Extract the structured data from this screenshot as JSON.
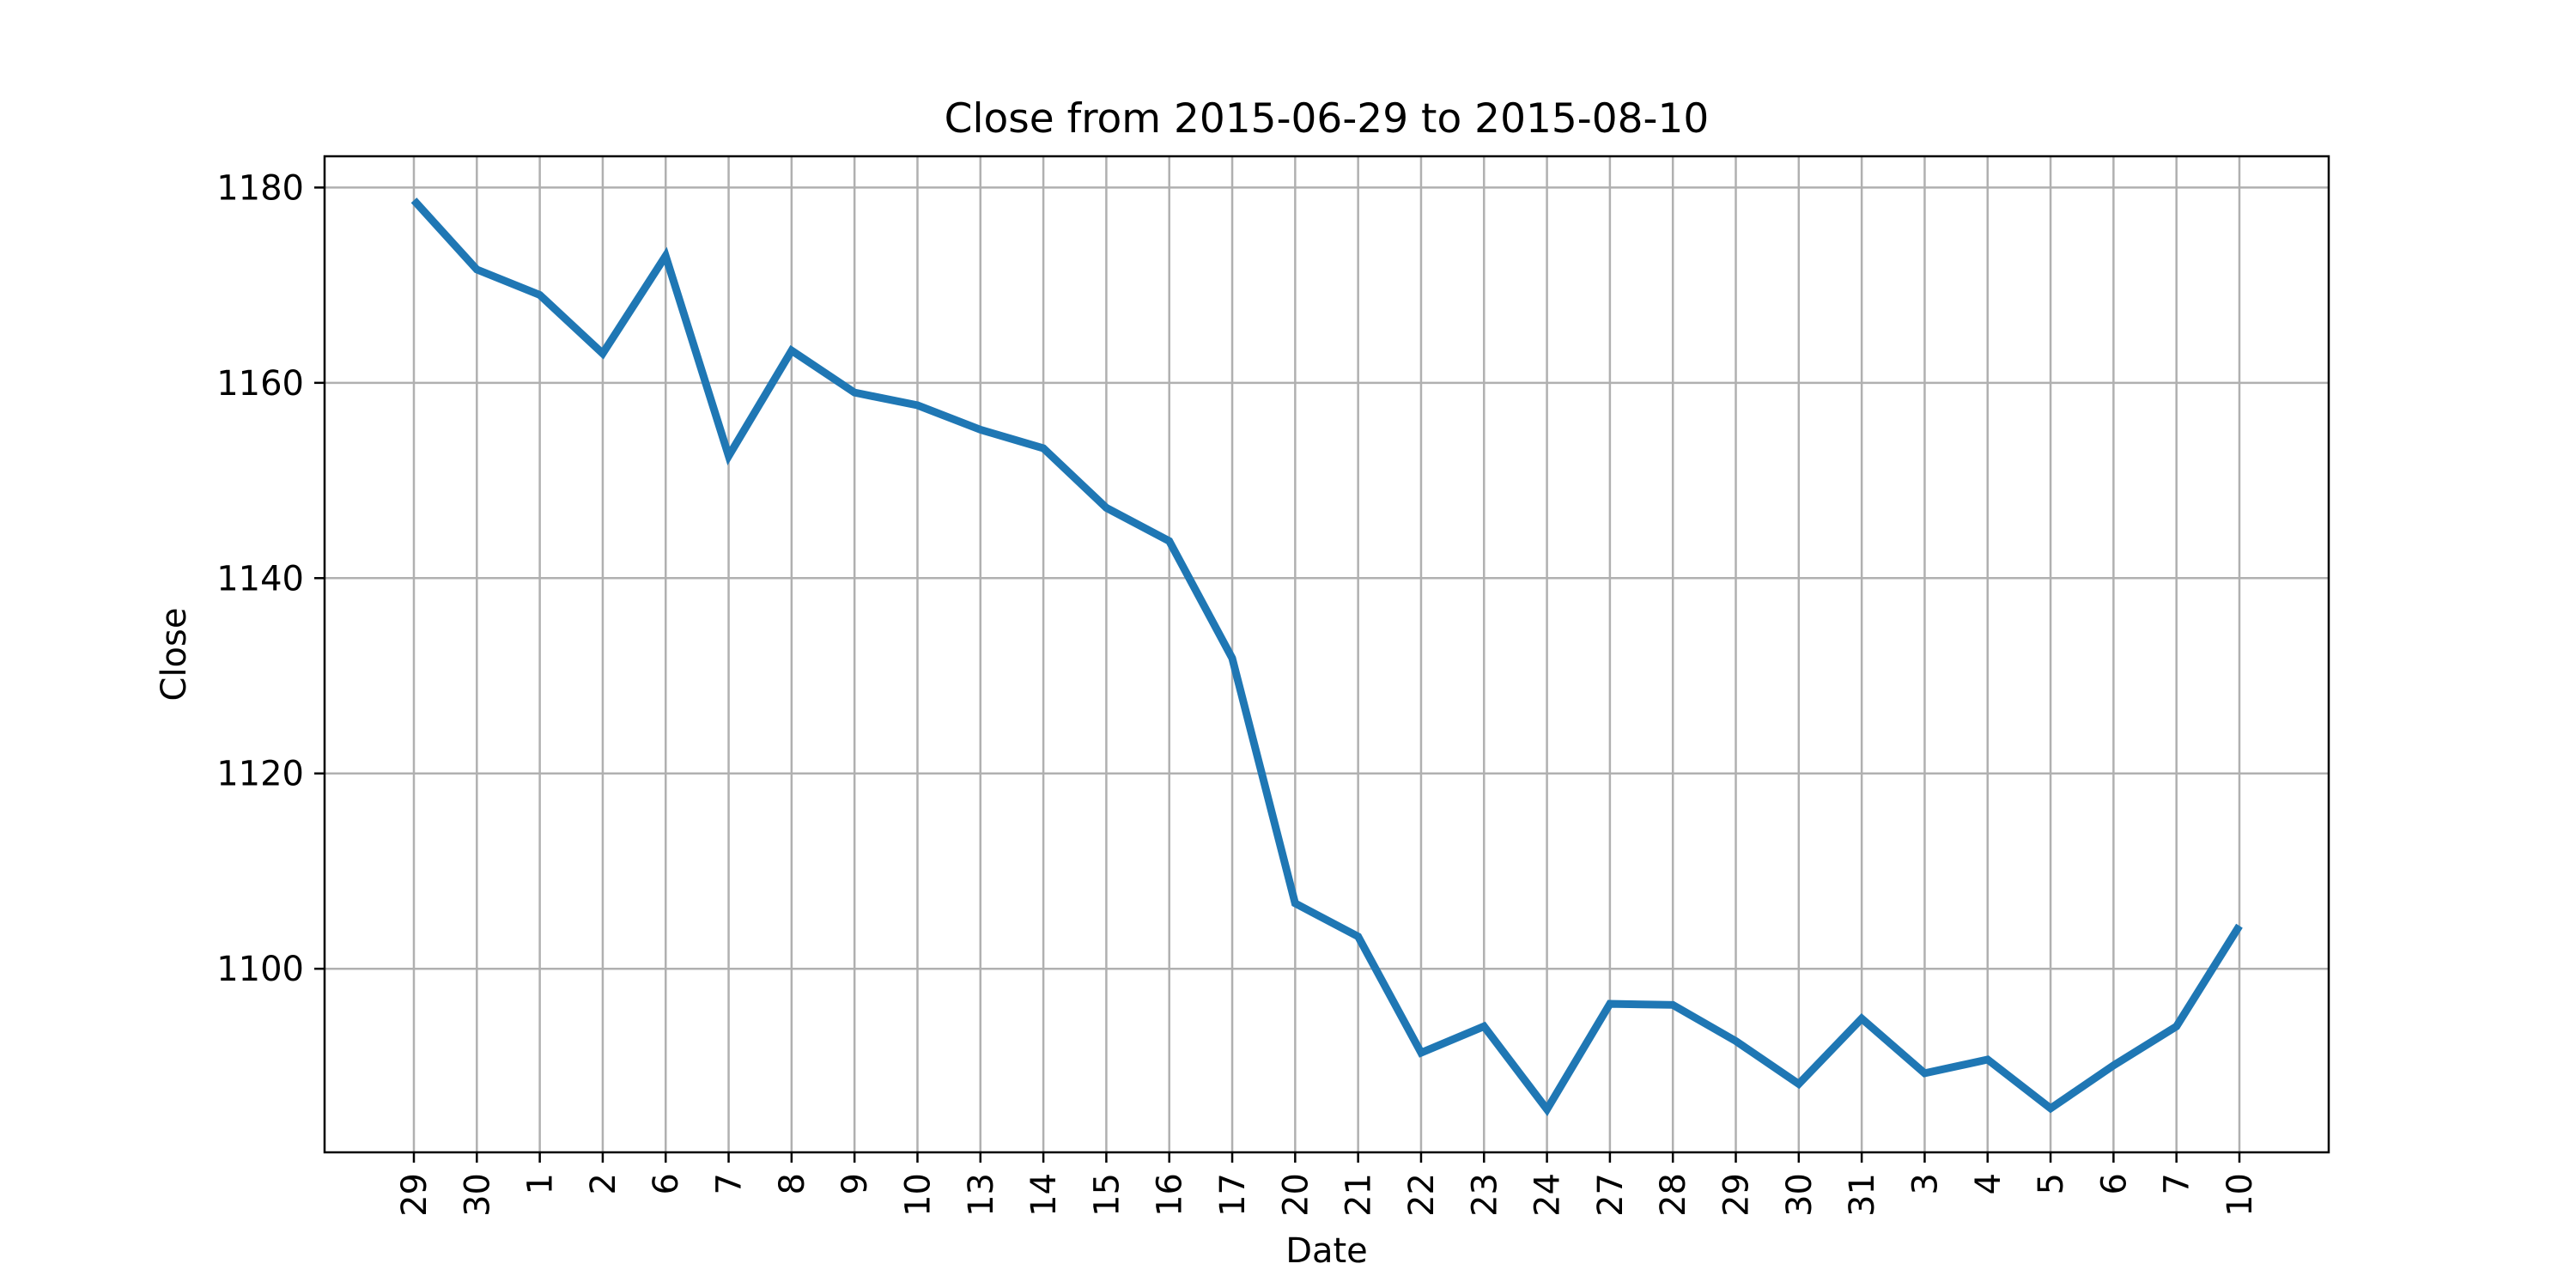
{
  "chart_data": {
    "type": "line",
    "title": "Close from 2015-06-29 to 2015-08-10",
    "xlabel": "Date",
    "ylabel": "Close",
    "x": [
      "2015-06-29",
      "2015-06-30",
      "2015-07-01",
      "2015-07-02",
      "2015-07-06",
      "2015-07-07",
      "2015-07-08",
      "2015-07-09",
      "2015-07-10",
      "2015-07-13",
      "2015-07-14",
      "2015-07-15",
      "2015-07-16",
      "2015-07-17",
      "2015-07-20",
      "2015-07-21",
      "2015-07-22",
      "2015-07-23",
      "2015-07-24",
      "2015-07-27",
      "2015-07-28",
      "2015-07-29",
      "2015-07-30",
      "2015-07-31",
      "2015-08-03",
      "2015-08-04",
      "2015-08-05",
      "2015-08-06",
      "2015-08-07",
      "2015-08-10"
    ],
    "tick_labels": [
      "29",
      "30",
      "1",
      "2",
      "6",
      "7",
      "8",
      "9",
      "10",
      "13",
      "14",
      "15",
      "16",
      "17",
      "20",
      "21",
      "22",
      "23",
      "24",
      "27",
      "28",
      "29",
      "30",
      "31",
      "3",
      "4",
      "5",
      "6",
      "7",
      "10"
    ],
    "series": [
      {
        "values": [
          1178.7,
          1171.6,
          1169.0,
          1163.0,
          1173.0,
          1152.5,
          1163.3,
          1159.0,
          1157.7,
          1155.2,
          1153.3,
          1147.2,
          1143.8,
          1131.8,
          1106.7,
          1103.3,
          1091.4,
          1094.1,
          1085.6,
          1096.4,
          1096.3,
          1092.6,
          1088.2,
          1094.9,
          1089.3,
          1090.7,
          1085.7,
          1090.1,
          1094.1,
          1104.4
        ],
        "color": "#1f77b4"
      }
    ],
    "ylim": [
      1081.2,
      1183.2
    ],
    "yticks": [
      1100,
      1120,
      1140,
      1160,
      1180
    ],
    "grid": true
  }
}
